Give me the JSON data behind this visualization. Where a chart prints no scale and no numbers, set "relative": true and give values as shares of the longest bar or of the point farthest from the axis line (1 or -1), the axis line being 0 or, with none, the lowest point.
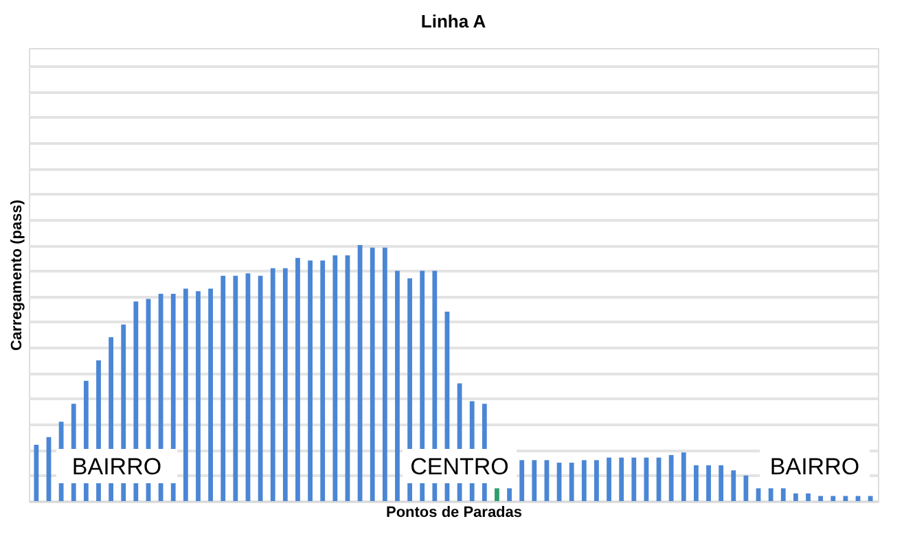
{
  "chart_data": {
    "type": "bar",
    "relative": true,
    "title": "Linha A",
    "xlabel": "Pontos de Paradas",
    "ylabel": "Carregamento (pass)",
    "grid": "y",
    "categories": [
      null,
      null,
      null,
      null,
      null,
      null,
      null,
      null,
      null,
      null,
      null,
      null,
      null,
      null,
      null,
      null,
      null,
      null,
      null,
      null,
      null,
      null,
      null,
      null,
      null,
      null,
      null,
      null,
      null,
      null,
      null,
      null,
      null,
      null,
      null,
      null,
      null,
      null,
      null,
      null,
      null,
      null,
      null,
      null,
      null,
      null,
      null,
      null,
      null,
      null,
      null,
      null,
      null,
      null,
      null,
      null,
      null,
      null,
      null,
      null,
      null,
      null,
      null,
      null,
      null,
      null,
      null,
      null
    ],
    "values": [
      0.22,
      0.25,
      0.31,
      0.38,
      0.47,
      0.55,
      0.64,
      0.69,
      0.78,
      0.79,
      0.81,
      0.81,
      0.83,
      0.82,
      0.83,
      0.88,
      0.88,
      0.89,
      0.88,
      0.91,
      0.91,
      0.95,
      0.94,
      0.94,
      0.96,
      0.96,
      1.0,
      0.99,
      0.99,
      0.9,
      0.87,
      0.9,
      0.9,
      0.74,
      0.46,
      0.39,
      0.38,
      0.05,
      0.05,
      0.16,
      0.16,
      0.16,
      0.15,
      0.15,
      0.16,
      0.16,
      0.17,
      0.17,
      0.17,
      0.17,
      0.17,
      0.18,
      0.19,
      0.14,
      0.14,
      0.14,
      0.12,
      0.1,
      0.05,
      0.05,
      0.05,
      0.03,
      0.03,
      0.02,
      0.02,
      0.02,
      0.02,
      0.02
    ],
    "colors": [
      "#4a86d4",
      "#4a86d4",
      "#4a86d4",
      "#4a86d4",
      "#4a86d4",
      "#4a86d4",
      "#4a86d4",
      "#4a86d4",
      "#4a86d4",
      "#4a86d4",
      "#4a86d4",
      "#4a86d4",
      "#4a86d4",
      "#4a86d4",
      "#4a86d4",
      "#4a86d4",
      "#4a86d4",
      "#4a86d4",
      "#4a86d4",
      "#4a86d4",
      "#4a86d4",
      "#4a86d4",
      "#4a86d4",
      "#4a86d4",
      "#4a86d4",
      "#4a86d4",
      "#4a86d4",
      "#4a86d4",
      "#4a86d4",
      "#4a86d4",
      "#4a86d4",
      "#4a86d4",
      "#4a86d4",
      "#4a86d4",
      "#4a86d4",
      "#4a86d4",
      "#4a86d4",
      "#2e9e6e",
      "#4a86d4",
      "#4a86d4",
      "#4a86d4",
      "#4a86d4",
      "#4a86d4",
      "#4a86d4",
      "#4a86d4",
      "#4a86d4",
      "#4a86d4",
      "#4a86d4",
      "#4a86d4",
      "#4a86d4",
      "#4a86d4",
      "#4a86d4",
      "#4a86d4",
      "#4a86d4",
      "#4a86d4",
      "#4a86d4",
      "#4a86d4",
      "#4a86d4",
      "#4a86d4",
      "#4a86d4",
      "#4a86d4",
      "#4a86d4",
      "#4a86d4",
      "#4a86d4",
      "#4a86d4",
      "#4a86d4",
      "#4a86d4",
      "#4a86d4"
    ],
    "annotations": [
      "BAIRRO",
      "CENTRO",
      "BAIRRO"
    ]
  }
}
